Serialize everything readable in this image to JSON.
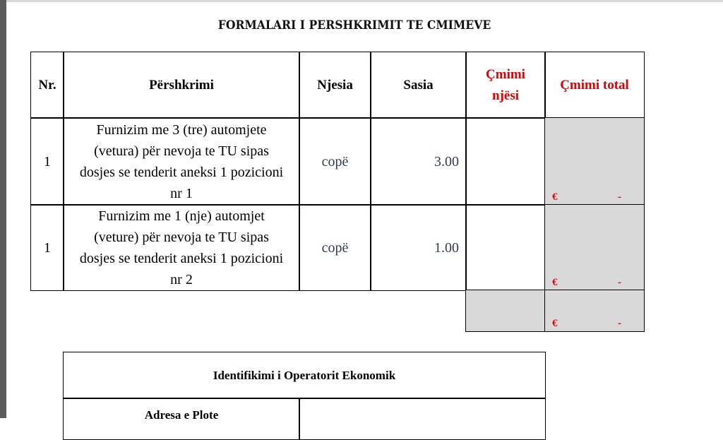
{
  "title": "FORMALARI I PERSHKRIMIT TE CMIMEVE",
  "headers": {
    "nr": "Nr.",
    "pershkrimi": "Përshkrimi",
    "njesia": "Njesia",
    "sasia": "Sasia",
    "cmimi_njesi": "Çmimi njësi",
    "cmimi_total": "Çmimi total"
  },
  "rows": [
    {
      "nr": "1",
      "pershkrimi": "Furnizim me 3 (tre) automjete (vetura) për nevoja te TU sipas dosjes se tenderit aneksi 1 pozicioni nr 1",
      "njesia": "copë",
      "sasia": "3.00",
      "cmimi_njesi": "",
      "currency": "€",
      "total": "-"
    },
    {
      "nr": "1",
      "pershkrimi": "Furnizim me 1 (nje) automjet (veture) për nevoja te TU sipas dosjes se tenderit aneksi 1 pozicioni nr 2",
      "njesia": "copë",
      "sasia": "1.00",
      "cmimi_njesi": "",
      "currency": "€",
      "total": "-"
    }
  ],
  "grand_total": {
    "currency": "€",
    "value": "-"
  },
  "operator": {
    "title": "Identifikimi i Operatorit Ekonomik",
    "address_label": "Adresa e Plote"
  },
  "colors": {
    "accent_red": "#e00000",
    "value_text": "#2e3b55",
    "shaded": "#d9d9d9"
  }
}
